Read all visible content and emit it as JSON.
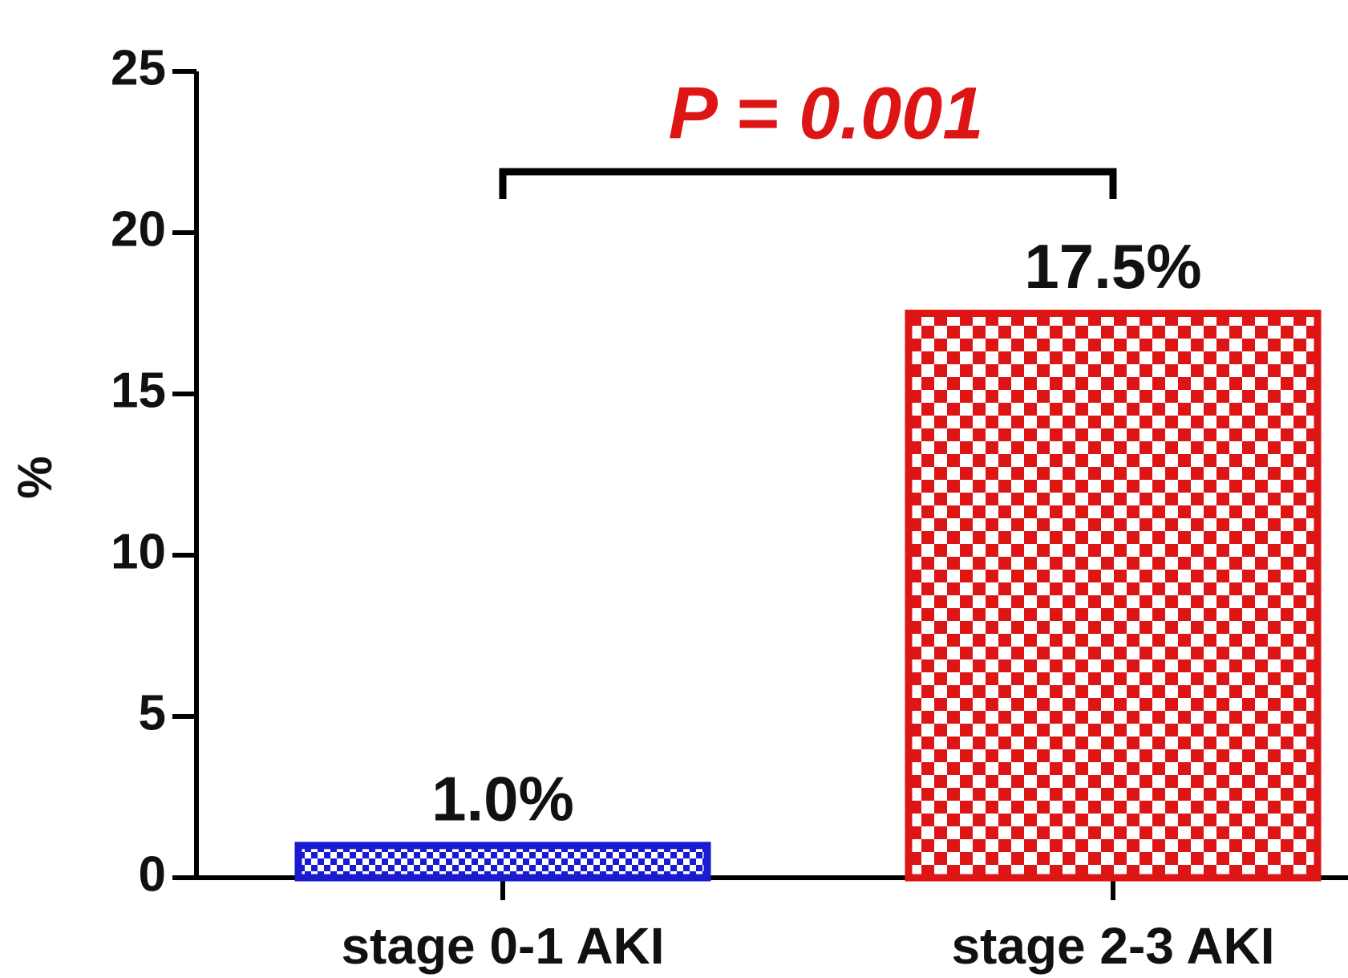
{
  "chart_data": {
    "type": "bar",
    "ylabel": "%",
    "annotation": "P = 0.001",
    "categories": [
      "stage 0-1 AKI",
      "stage 2-3 AKI"
    ],
    "values": [
      1.0,
      17.5
    ],
    "value_labels": [
      "1.0%",
      "17.5%"
    ],
    "colors": [
      "#1a1ad0",
      "#dd1515"
    ],
    "ylim": [
      0,
      25
    ],
    "yticks": [
      0,
      5,
      10,
      15,
      20,
      25
    ]
  }
}
